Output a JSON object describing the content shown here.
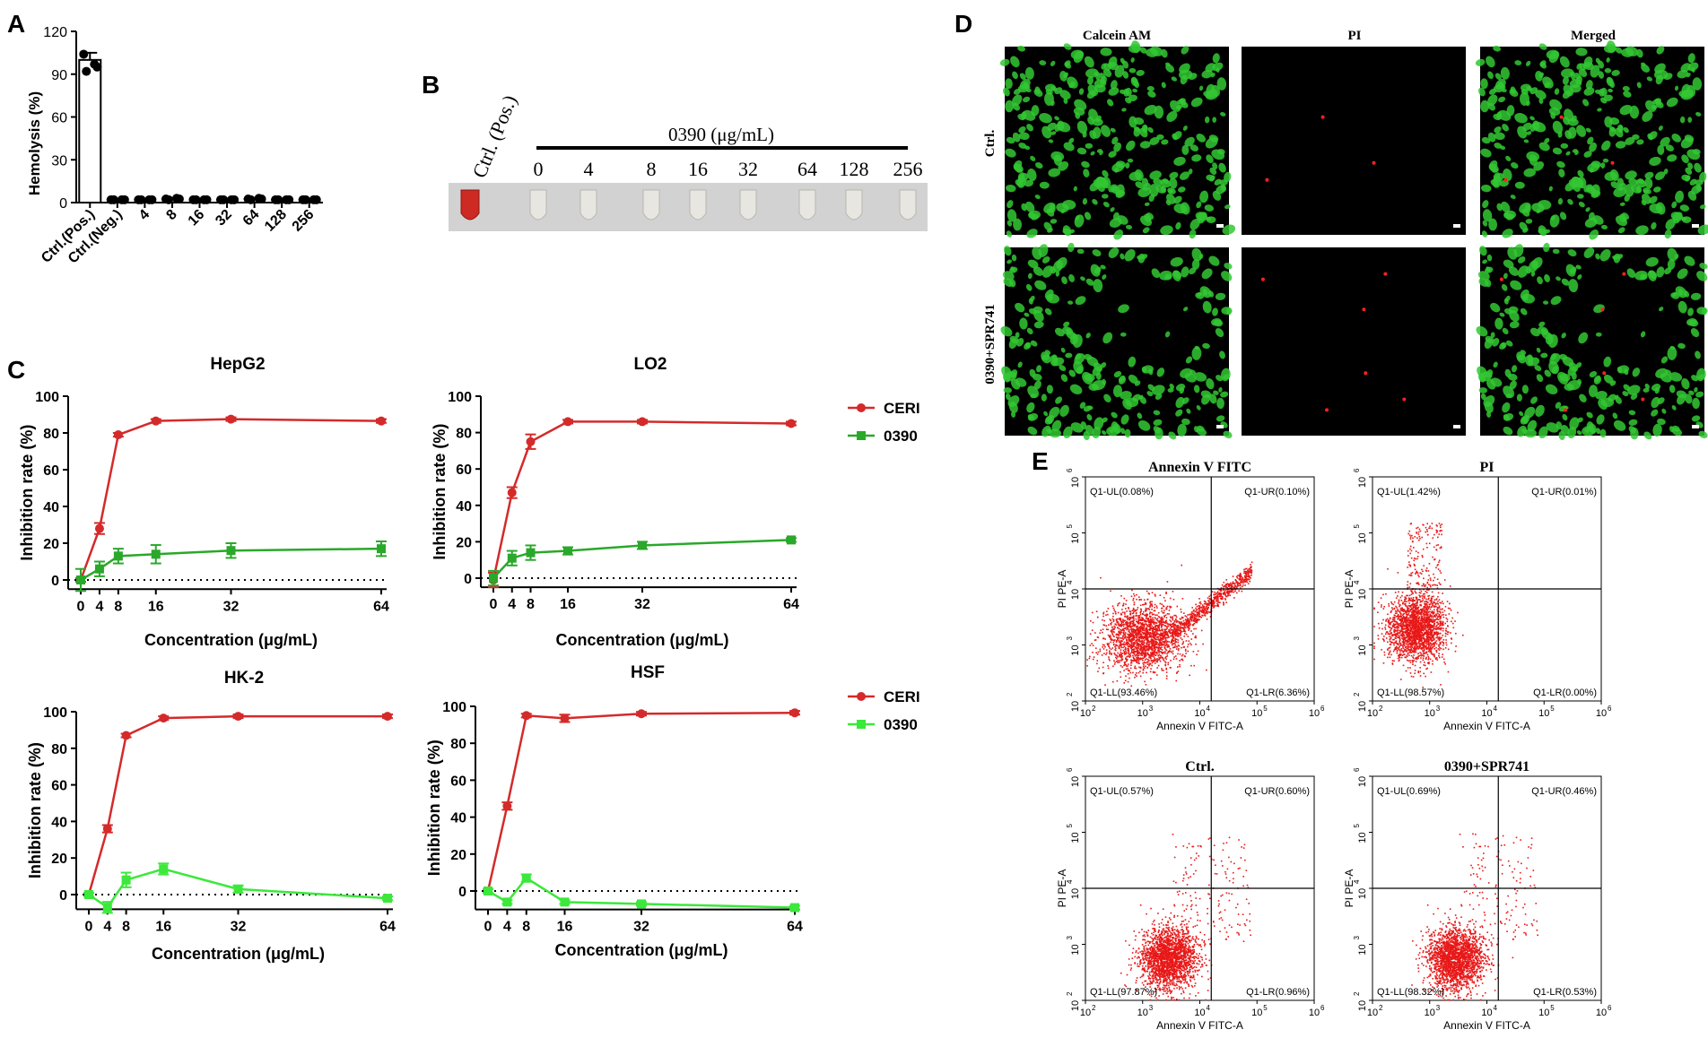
{
  "panels": {
    "A": "A",
    "B": "B",
    "C": "C",
    "D": "D",
    "E": "E"
  },
  "panelA": {
    "ylabel": "Hemolysis (%)",
    "yticks": [
      "0",
      "30",
      "60",
      "90",
      "120"
    ],
    "categories": [
      "Ctrl.(Pos.)",
      "Ctrl.(Neg.)",
      "4",
      "8",
      "16",
      "32",
      "64",
      "128",
      "256"
    ]
  },
  "panelB": {
    "pos_label": "Ctrl. (Pos.)",
    "group_label": "0390 (μg/mL)",
    "concentrations": [
      "0",
      "4",
      "8",
      "16",
      "32",
      "64",
      "128",
      "256"
    ],
    "colors": {
      "positive_tube": "#cc2a22",
      "negative_tube": "#e8e6e0",
      "photo_bg": "#d2d2d2"
    }
  },
  "panelC": {
    "titles": [
      "HepG2",
      "LO2",
      "HK-2",
      "HSF"
    ],
    "xlabels": [
      "Concentration (μg/mL)",
      "Concentration (μg/mL)",
      "Concentration (μg/mL)",
      "Concentration (μg/mL)"
    ],
    "ylabels": [
      "Inhibition rate (%)",
      "Inhibition rate (%)",
      "Inhibition rate (%)",
      "Inhibition rate (%)"
    ],
    "xticks": [
      "0",
      "4",
      "8",
      "16",
      "32",
      "64"
    ],
    "yticks": [
      "0",
      "20",
      "40",
      "60",
      "80",
      "100"
    ],
    "legend": [
      "CERI",
      "0390"
    ],
    "colors": {
      "ceri": "#d42a2a",
      "c0390_top": "#2aa82a",
      "c0390_bottom": "#3be83b"
    }
  },
  "panelD": {
    "col_labels": [
      "Calcein AM",
      "PI",
      "Merged"
    ],
    "row_labels": [
      "Ctrl.",
      "0390+SPR741"
    ],
    "colors": {
      "live": "#32c832",
      "dead": "#ff2020"
    }
  },
  "panelE": {
    "titles": [
      "Annexin V FITC",
      "PI",
      "Ctrl.",
      "0390+SPR741"
    ],
    "xlabel": "Annexin V FITC-A",
    "ylabel": "PI PE-A",
    "ticks": [
      "10",
      "10",
      "10",
      "10",
      "10"
    ],
    "tick_exps": [
      "2",
      "3",
      "4",
      "5",
      "6"
    ],
    "quadrants": [
      {
        "UL": "Q1-UL(0.08%)",
        "UR": "Q1-UR(0.10%)",
        "LL": "Q1-LL(93.46%)",
        "LR": "Q1-LR(6.36%)"
      },
      {
        "UL": "Q1-UL(1.42%)",
        "UR": "Q1-UR(0.01%)",
        "LL": "Q1-LL(98.57%)",
        "LR": "Q1-LR(0.00%)"
      },
      {
        "UL": "Q1-UL(0.57%)",
        "UR": "Q1-UR(0.60%)",
        "LL": "Q1-LL(97.87%)",
        "LR": "Q1-LR(0.96%)"
      },
      {
        "UL": "Q1-UL(0.69%)",
        "UR": "Q1-UR(0.46%)",
        "LL": "Q1-LL(98.32%)",
        "LR": "Q1-LR(0.53%)"
      }
    ],
    "dot_color": "#e81818"
  },
  "chart_data": [
    {
      "type": "bar",
      "categories": [
        "Ctrl.(Pos.)",
        "Ctrl.(Neg.)",
        "4",
        "8",
        "16",
        "32",
        "64",
        "128",
        "256"
      ],
      "values": [
        100,
        2,
        2,
        2.5,
        2,
        2,
        2.5,
        2,
        2
      ],
      "points": [
        [
          104,
          97,
          92,
          95
        ],
        [
          2,
          2,
          2,
          2
        ],
        [
          2,
          2,
          2,
          2
        ],
        [
          2.5,
          3,
          2,
          2.5
        ],
        [
          2,
          2,
          2,
          2
        ],
        [
          2,
          2,
          2,
          2
        ],
        [
          2.5,
          3,
          2,
          2.5
        ],
        [
          2,
          2,
          2,
          2
        ],
        [
          2,
          2,
          2,
          2
        ]
      ],
      "error": [
        5,
        0,
        0,
        0,
        0,
        0,
        0,
        0,
        0
      ],
      "xlabel": "",
      "ylabel": "Hemolysis (%)",
      "ylim": [
        0,
        120
      ]
    },
    {
      "type": "line",
      "title": "HepG2",
      "x": [
        0,
        4,
        8,
        16,
        32,
        64
      ],
      "series": [
        {
          "name": "CERI",
          "values": [
            0,
            28,
            79,
            86.5,
            87.5,
            86.5
          ],
          "error": [
            1,
            3,
            1,
            1,
            1,
            1
          ]
        },
        {
          "name": "0390",
          "values": [
            0,
            6,
            13,
            14,
            16,
            17
          ],
          "error": [
            6,
            4,
            4,
            5,
            4,
            4
          ]
        }
      ],
      "xlabel": "Concentration (μg/mL)",
      "ylabel": "Inhibition rate (%)",
      "ylim": [
        -5,
        100
      ]
    },
    {
      "type": "line",
      "title": "LO2",
      "x": [
        0,
        4,
        8,
        16,
        32,
        64
      ],
      "series": [
        {
          "name": "CERI",
          "values": [
            -1,
            47,
            75,
            86,
            86,
            85
          ],
          "error": [
            4,
            3,
            4,
            1,
            1,
            1
          ]
        },
        {
          "name": "0390",
          "values": [
            0,
            11,
            14,
            15,
            18,
            21
          ],
          "error": [
            4,
            4,
            4,
            2,
            2,
            1
          ]
        }
      ],
      "xlabel": "Concentration (μg/mL)",
      "ylabel": "Inhibition rate (%)",
      "ylim": [
        -5,
        100
      ]
    },
    {
      "type": "line",
      "title": "HK-2",
      "x": [
        0,
        4,
        8,
        16,
        32,
        64
      ],
      "series": [
        {
          "name": "CERI",
          "values": [
            0,
            36,
            87,
            96.5,
            97.5,
            97.5
          ],
          "error": [
            1,
            2,
            1,
            1,
            1,
            1
          ]
        },
        {
          "name": "0390",
          "values": [
            0,
            -7,
            8,
            14,
            3,
            -2
          ],
          "error": [
            1,
            3,
            4,
            3,
            2,
            1
          ]
        }
      ],
      "xlabel": "Concentration (μg/mL)",
      "ylabel": "Inhibition rate (%)",
      "ylim": [
        -8,
        100
      ]
    },
    {
      "type": "line",
      "title": "HSF",
      "x": [
        0,
        4,
        8,
        16,
        32,
        64
      ],
      "series": [
        {
          "name": "CERI",
          "values": [
            0,
            46,
            95,
            93.5,
            96,
            96.5
          ],
          "error": [
            1,
            2,
            1,
            2,
            1,
            1
          ]
        },
        {
          "name": "0390",
          "values": [
            0,
            -6,
            7,
            -6,
            -7,
            -9
          ],
          "error": [
            1,
            1,
            2,
            1,
            1,
            1
          ]
        }
      ],
      "xlabel": "Concentration (μg/mL)",
      "ylabel": "Inhibition rate (%)",
      "ylim": [
        -10,
        100
      ]
    }
  ]
}
